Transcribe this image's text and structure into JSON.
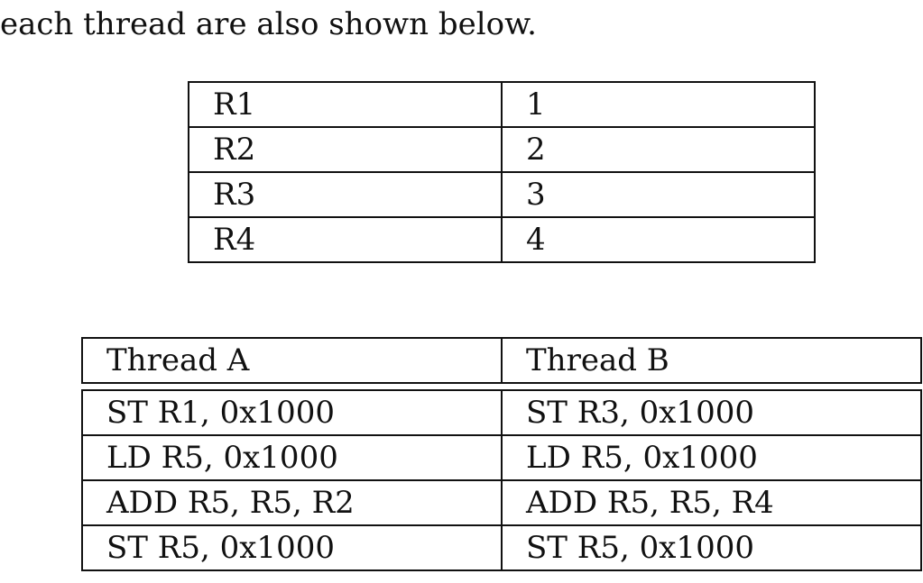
{
  "intro_text": "each thread are also shown below.",
  "register_table": {
    "rows": [
      {
        "name": "R1",
        "value": "1"
      },
      {
        "name": "R2",
        "value": "2"
      },
      {
        "name": "R3",
        "value": "3"
      },
      {
        "name": "R4",
        "value": "4"
      }
    ]
  },
  "thread_table": {
    "headers": [
      "Thread A",
      "Thread B"
    ],
    "rows": [
      [
        "ST R1, 0x1000",
        "ST R3, 0x1000"
      ],
      [
        "LD R5, 0x1000",
        "LD R5, 0x1000"
      ],
      [
        "ADD R5, R5, R2",
        "ADD R5, R5, R4"
      ],
      [
        "ST R5, 0x1000",
        "ST R5, 0x1000"
      ]
    ]
  }
}
